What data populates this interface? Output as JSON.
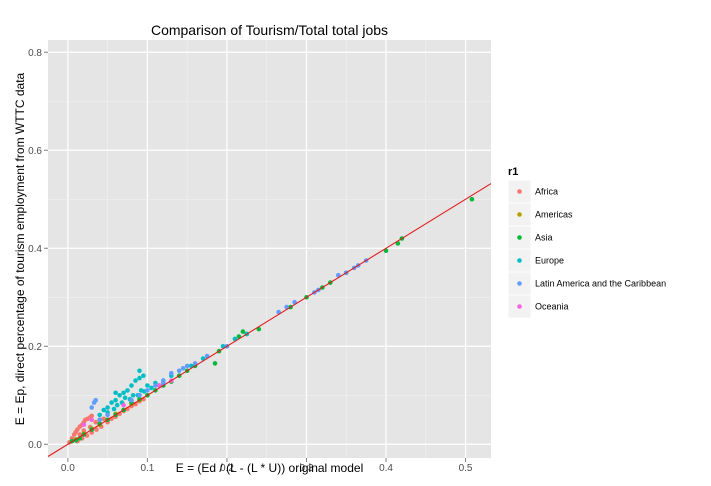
{
  "chart_data": {
    "type": "scatter",
    "title": "Comparison of Tourism/Total total jobs",
    "xlabel": "E = (Ed / (L - (L * U)) original model",
    "ylabel": "E = Ep, direct percentage of tourism employment from WTTC data",
    "xlim": [
      -0.025,
      0.532
    ],
    "ylim": [
      -0.028,
      0.825
    ],
    "x_ticks": [
      "0.0",
      "0.1",
      "0.2",
      "0.3",
      "0.4",
      "0.5"
    ],
    "y_ticks": [
      "0.0",
      "0.2",
      "0.4",
      "0.6",
      "0.8"
    ],
    "grid": true,
    "legend_position": "right",
    "legend_title": "r1",
    "reference_line": {
      "intercept": 0,
      "slope": 1,
      "color": "#e31a1c"
    },
    "series": [
      {
        "name": "Africa",
        "color": "#F8766D",
        "points": [
          [
            0.002,
            0.004
          ],
          [
            0.005,
            0.012
          ],
          [
            0.008,
            0.02
          ],
          [
            0.01,
            0.025
          ],
          [
            0.012,
            0.03
          ],
          [
            0.015,
            0.036
          ],
          [
            0.018,
            0.04
          ],
          [
            0.02,
            0.045
          ],
          [
            0.022,
            0.05
          ],
          [
            0.025,
            0.052
          ],
          [
            0.028,
            0.055
          ],
          [
            0.03,
            0.058
          ],
          [
            0.012,
            0.006
          ],
          [
            0.018,
            0.012
          ],
          [
            0.024,
            0.018
          ],
          [
            0.03,
            0.024
          ],
          [
            0.036,
            0.03
          ],
          [
            0.042,
            0.036
          ],
          [
            0.05,
            0.045
          ],
          [
            0.055,
            0.052
          ],
          [
            0.06,
            0.056
          ],
          [
            0.065,
            0.062
          ],
          [
            0.07,
            0.068
          ],
          [
            0.075,
            0.072
          ],
          [
            0.08,
            0.078
          ],
          [
            0.085,
            0.082
          ],
          [
            0.09,
            0.088
          ],
          [
            0.095,
            0.092
          ],
          [
            0.1,
            0.1
          ],
          [
            0.035,
            0.045
          ],
          [
            0.04,
            0.05
          ],
          [
            0.045,
            0.052
          ],
          [
            0.028,
            0.035
          ],
          [
            0.02,
            0.028
          ],
          [
            0.015,
            0.02
          ],
          [
            0.006,
            0.01
          ]
        ]
      },
      {
        "name": "Americas",
        "color": "#B79F00",
        "points": [
          [
            0.01,
            0.01
          ],
          [
            0.02,
            0.022
          ],
          [
            0.03,
            0.032
          ],
          [
            0.04,
            0.04
          ],
          [
            0.05,
            0.05
          ],
          [
            0.06,
            0.062
          ],
          [
            0.07,
            0.07
          ],
          [
            0.08,
            0.082
          ],
          [
            0.09,
            0.09
          ]
        ]
      },
      {
        "name": "Asia",
        "color": "#00BA38",
        "points": [
          [
            0.005,
            0.006
          ],
          [
            0.01,
            0.008
          ],
          [
            0.015,
            0.012
          ],
          [
            0.02,
            0.02
          ],
          [
            0.03,
            0.03
          ],
          [
            0.04,
            0.042
          ],
          [
            0.05,
            0.05
          ],
          [
            0.06,
            0.06
          ],
          [
            0.07,
            0.07
          ],
          [
            0.08,
            0.085
          ],
          [
            0.09,
            0.092
          ],
          [
            0.1,
            0.1
          ],
          [
            0.11,
            0.11
          ],
          [
            0.12,
            0.12
          ],
          [
            0.13,
            0.128
          ],
          [
            0.14,
            0.14
          ],
          [
            0.15,
            0.15
          ],
          [
            0.16,
            0.16
          ],
          [
            0.185,
            0.165
          ],
          [
            0.19,
            0.19
          ],
          [
            0.2,
            0.2
          ],
          [
            0.215,
            0.22
          ],
          [
            0.22,
            0.23
          ],
          [
            0.225,
            0.225
          ],
          [
            0.24,
            0.235
          ],
          [
            0.28,
            0.28
          ],
          [
            0.3,
            0.3
          ],
          [
            0.32,
            0.32
          ],
          [
            0.33,
            0.33
          ],
          [
            0.35,
            0.35
          ],
          [
            0.4,
            0.395
          ],
          [
            0.42,
            0.42
          ],
          [
            0.415,
            0.41
          ],
          [
            0.508,
            0.5
          ]
        ]
      },
      {
        "name": "Europe",
        "color": "#00BFC4",
        "points": [
          [
            0.04,
            0.06
          ],
          [
            0.045,
            0.07
          ],
          [
            0.05,
            0.075
          ],
          [
            0.055,
            0.085
          ],
          [
            0.06,
            0.09
          ],
          [
            0.065,
            0.1
          ],
          [
            0.07,
            0.105
          ],
          [
            0.075,
            0.11
          ],
          [
            0.08,
            0.12
          ],
          [
            0.085,
            0.13
          ],
          [
            0.09,
            0.135
          ],
          [
            0.095,
            0.14
          ],
          [
            0.062,
            0.08
          ],
          [
            0.072,
            0.095
          ],
          [
            0.082,
            0.1
          ],
          [
            0.092,
            0.11
          ],
          [
            0.1,
            0.12
          ],
          [
            0.11,
            0.125
          ],
          [
            0.12,
            0.13
          ],
          [
            0.13,
            0.14
          ],
          [
            0.05,
            0.065
          ],
          [
            0.058,
            0.072
          ],
          [
            0.068,
            0.085
          ],
          [
            0.078,
            0.092
          ],
          [
            0.088,
            0.1
          ],
          [
            0.096,
            0.108
          ],
          [
            0.105,
            0.115
          ],
          [
            0.115,
            0.12
          ],
          [
            0.155,
            0.16
          ],
          [
            0.17,
            0.175
          ],
          [
            0.195,
            0.2
          ],
          [
            0.21,
            0.215
          ],
          [
            0.225,
            0.225
          ],
          [
            0.06,
            0.105
          ],
          [
            0.09,
            0.15
          ]
        ]
      },
      {
        "name": "Latin America and the Caribbean",
        "color": "#619CFF",
        "points": [
          [
            0.03,
            0.075
          ],
          [
            0.033,
            0.085
          ],
          [
            0.035,
            0.09
          ],
          [
            0.04,
            0.05
          ],
          [
            0.05,
            0.06
          ],
          [
            0.08,
            0.09
          ],
          [
            0.1,
            0.11
          ],
          [
            0.11,
            0.12
          ],
          [
            0.12,
            0.13
          ],
          [
            0.13,
            0.145
          ],
          [
            0.14,
            0.15
          ],
          [
            0.145,
            0.155
          ],
          [
            0.15,
            0.16
          ],
          [
            0.16,
            0.165
          ],
          [
            0.175,
            0.18
          ],
          [
            0.2,
            0.2
          ],
          [
            0.265,
            0.27
          ],
          [
            0.275,
            0.28
          ],
          [
            0.285,
            0.29
          ],
          [
            0.31,
            0.31
          ],
          [
            0.315,
            0.315
          ],
          [
            0.34,
            0.345
          ],
          [
            0.35,
            0.35
          ],
          [
            0.36,
            0.36
          ],
          [
            0.365,
            0.365
          ],
          [
            0.375,
            0.375
          ],
          [
            0.09,
            0.1
          ],
          [
            0.12,
            0.125
          ]
        ]
      },
      {
        "name": "Oceania",
        "color": "#F564E3",
        "points": [
          [
            0.02,
            0.04
          ],
          [
            0.03,
            0.05
          ],
          [
            0.07,
            0.08
          ],
          [
            0.115,
            0.12
          ],
          [
            0.13,
            0.13
          ]
        ]
      }
    ]
  }
}
